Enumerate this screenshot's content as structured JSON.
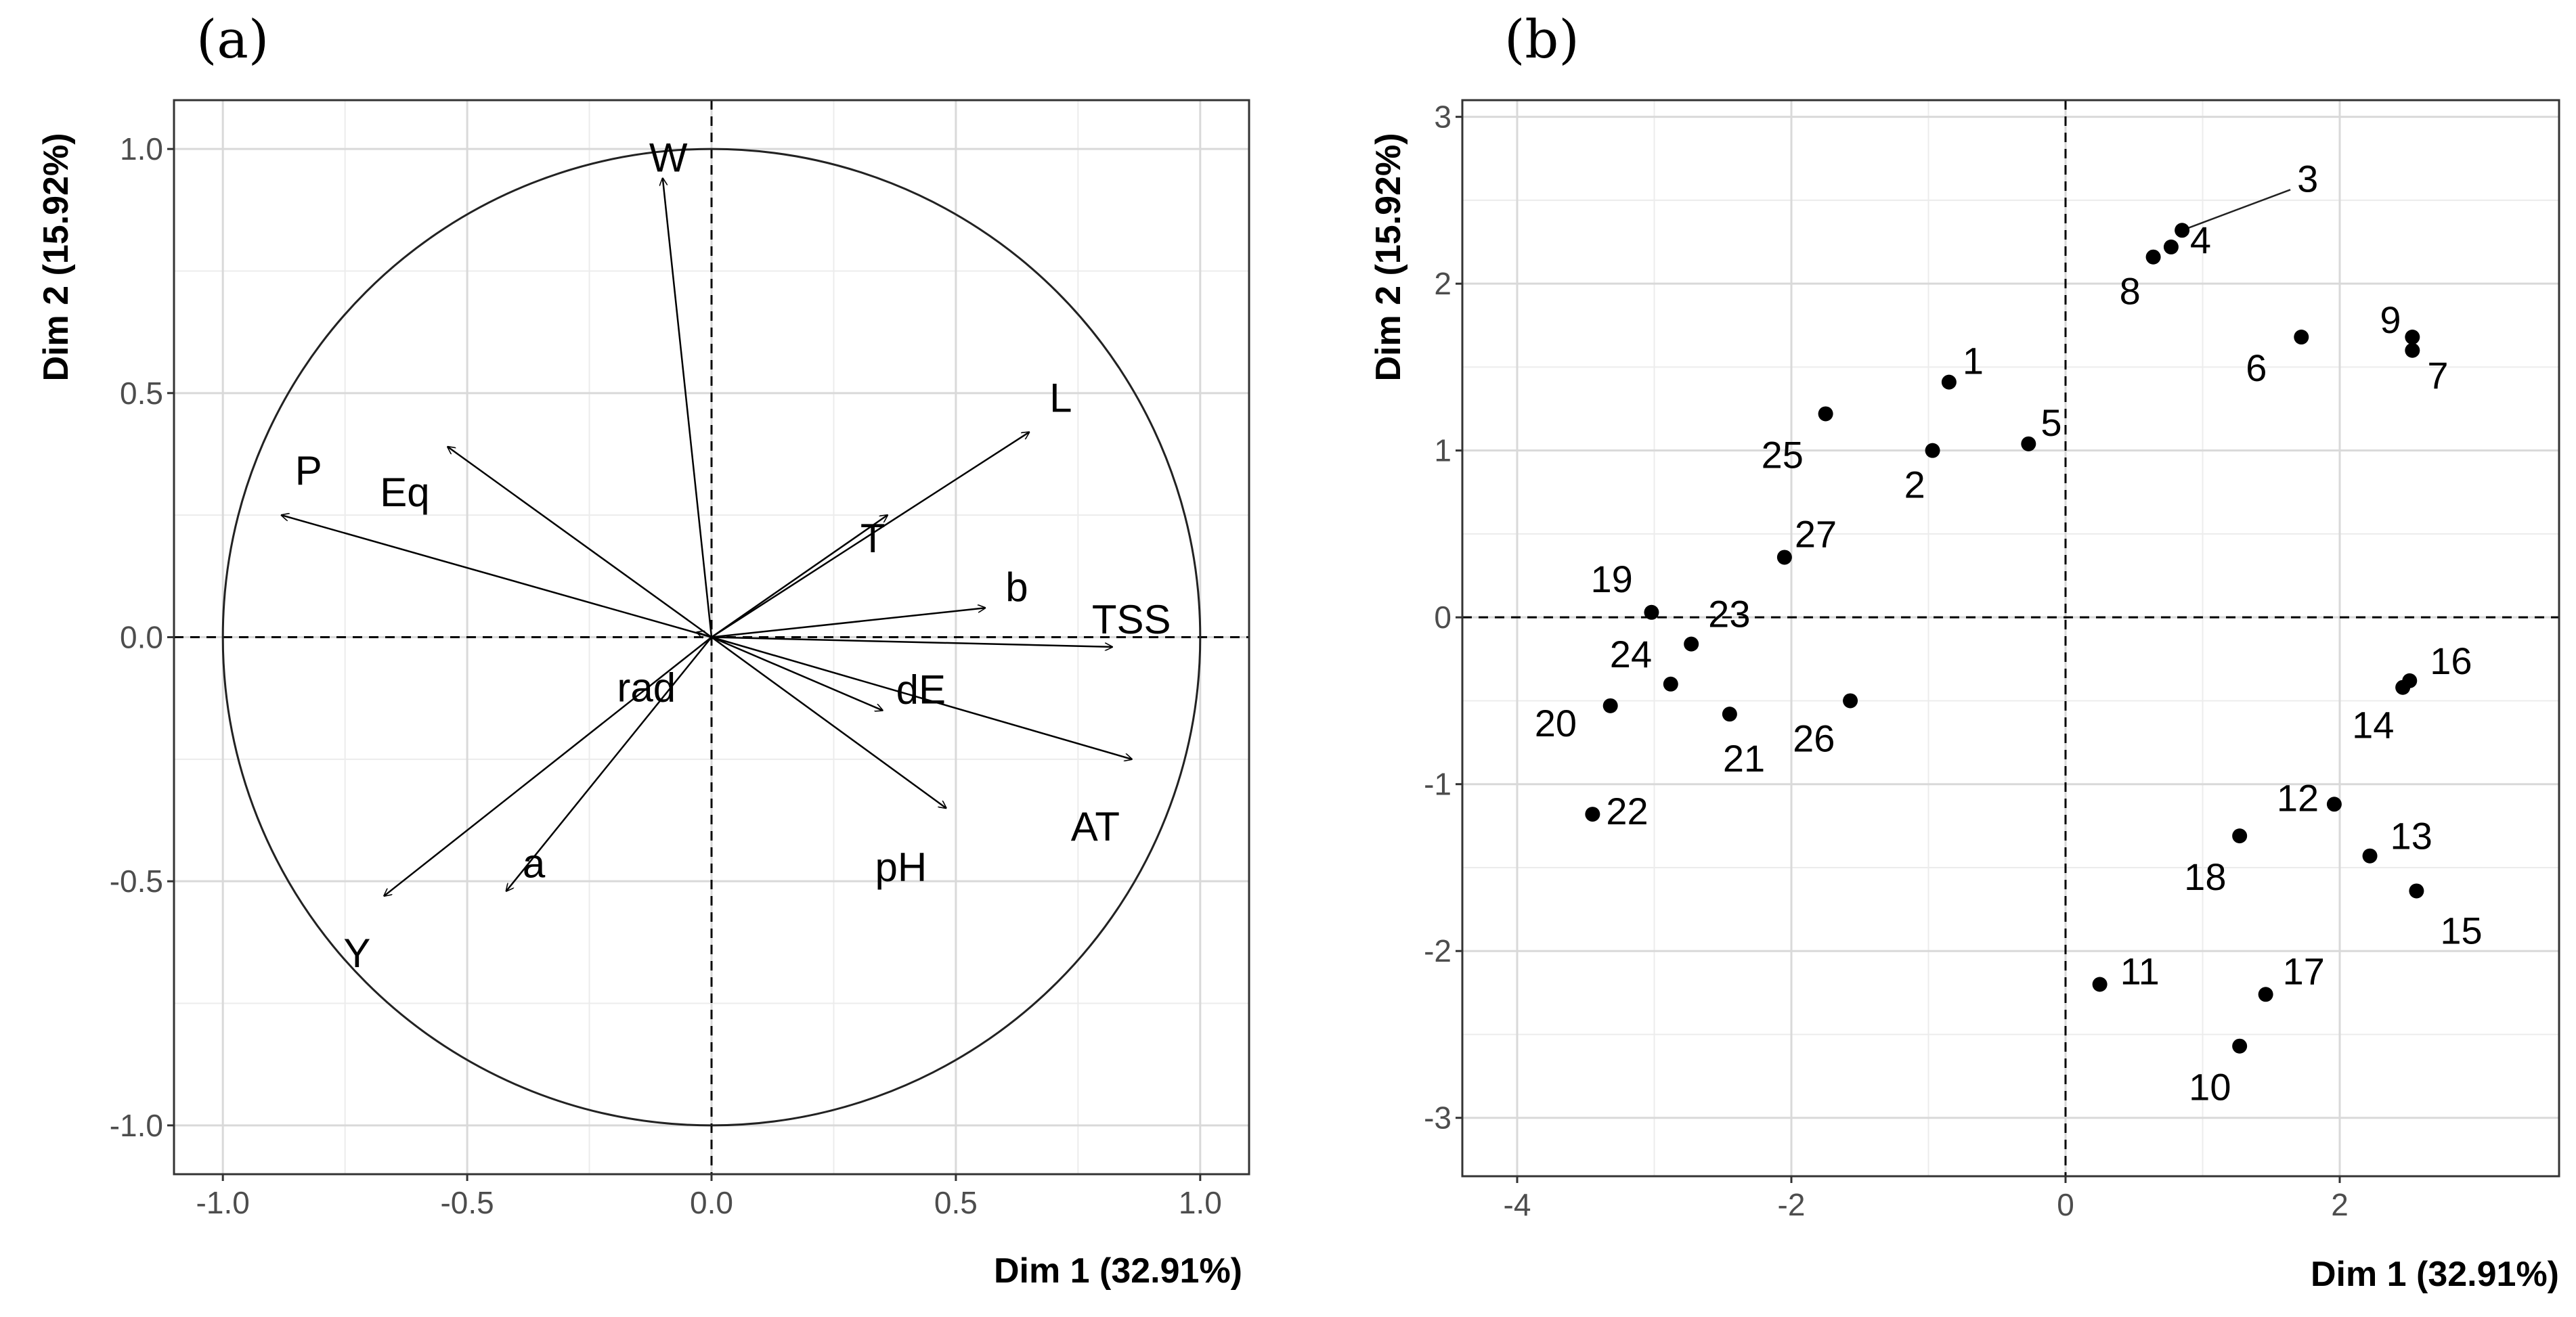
{
  "chart_data": [
    {
      "type": "biplot-variables",
      "panel_label": "(a)",
      "xlabel": "Dim 1 (32.91%)",
      "ylabel": "Dim 2 (15.92%)",
      "xlim": [
        -1.1,
        1.1
      ],
      "ylim": [
        -1.1,
        1.1
      ],
      "xticks": [
        -1.0,
        -0.5,
        0.0,
        0.5,
        1.0
      ],
      "xtick_labels": [
        "-1.0",
        "-0.5",
        "0.0",
        "0.5",
        "1.0"
      ],
      "yticks": [
        -1.0,
        -0.5,
        0.0,
        0.5,
        1.0
      ],
      "ytick_labels": [
        "-1.0",
        "-0.5",
        "0.0",
        "0.5",
        "1.0"
      ],
      "grid": true,
      "unit_circle": true,
      "variables": [
        {
          "name": "W",
          "x": -0.1,
          "y": 0.94
        },
        {
          "name": "L",
          "x": 0.65,
          "y": 0.42
        },
        {
          "name": "T",
          "x": 0.36,
          "y": 0.25
        },
        {
          "name": "b",
          "x": 0.56,
          "y": 0.06
        },
        {
          "name": "TSS",
          "x": 0.82,
          "y": -0.02
        },
        {
          "name": "dE",
          "x": 0.35,
          "y": -0.15
        },
        {
          "name": "AT",
          "x": 0.86,
          "y": -0.25
        },
        {
          "name": "pH",
          "x": 0.48,
          "y": -0.35
        },
        {
          "name": "P",
          "x": -0.88,
          "y": 0.25
        },
        {
          "name": "Eq",
          "x": -0.54,
          "y": 0.39
        },
        {
          "name": "rad",
          "x": -0.03,
          "y": 0.01
        },
        {
          "name": "a",
          "x": -0.42,
          "y": -0.52
        },
        {
          "name": "Y",
          "x": -0.67,
          "y": -0.53
        }
      ]
    },
    {
      "type": "scatter",
      "panel_label": "(b)",
      "xlabel": "Dim 1 (32.91%)",
      "ylabel": "Dim 2 (15.92%)",
      "xlim": [
        -4.4,
        3.6
      ],
      "ylim": [
        -3.35,
        3.1
      ],
      "xticks": [
        -4,
        -2,
        0,
        2
      ],
      "xtick_labels": [
        "-4",
        "-2",
        "0",
        "2"
      ],
      "yticks": [
        -3,
        -2,
        -1,
        0,
        1,
        2,
        3
      ],
      "ytick_labels": [
        "-3",
        "-2",
        "-1",
        "0",
        "1",
        "2",
        "3"
      ],
      "grid": true,
      "points": [
        {
          "label": "1",
          "x": -0.85,
          "y": 1.41
        },
        {
          "label": "2",
          "x": -0.97,
          "y": 1.0
        },
        {
          "label": "3",
          "x": 0.85,
          "y": 2.32
        },
        {
          "label": "4",
          "x": 0.77,
          "y": 2.22
        },
        {
          "label": "5",
          "x": -0.27,
          "y": 1.04
        },
        {
          "label": "6",
          "x": 1.72,
          "y": 1.68
        },
        {
          "label": "7",
          "x": 2.53,
          "y": 1.6
        },
        {
          "label": "8",
          "x": 0.64,
          "y": 2.16
        },
        {
          "label": "9",
          "x": 2.53,
          "y": 1.68
        },
        {
          "label": "10",
          "x": 1.27,
          "y": -2.57
        },
        {
          "label": "11",
          "x": 0.25,
          "y": -2.2
        },
        {
          "label": "12",
          "x": 1.96,
          "y": -1.12
        },
        {
          "label": "13",
          "x": 2.22,
          "y": -1.43
        },
        {
          "label": "14",
          "x": 2.46,
          "y": -0.42
        },
        {
          "label": "15",
          "x": 2.56,
          "y": -1.64
        },
        {
          "label": "16",
          "x": 2.51,
          "y": -0.38
        },
        {
          "label": "17",
          "x": 1.46,
          "y": -2.26
        },
        {
          "label": "18",
          "x": 1.27,
          "y": -1.31
        },
        {
          "label": "19",
          "x": -3.02,
          "y": 0.03
        },
        {
          "label": "20",
          "x": -3.32,
          "y": -0.53
        },
        {
          "label": "21",
          "x": -2.45,
          "y": -0.58
        },
        {
          "label": "22",
          "x": -3.45,
          "y": -1.18
        },
        {
          "label": "23",
          "x": -2.73,
          "y": -0.16
        },
        {
          "label": "24",
          "x": -2.88,
          "y": -0.4
        },
        {
          "label": "25",
          "x": -1.75,
          "y": 1.22
        },
        {
          "label": "26",
          "x": -1.57,
          "y": -0.5
        },
        {
          "label": "27",
          "x": -2.05,
          "y": 0.36
        }
      ]
    }
  ]
}
